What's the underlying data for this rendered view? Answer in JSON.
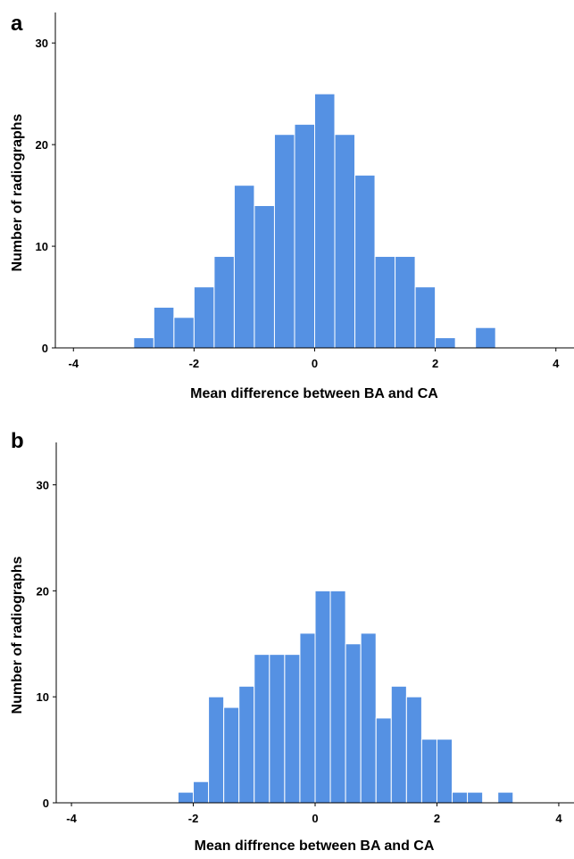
{
  "chart_data": [
    {
      "type": "bar",
      "panel_label": "a",
      "title": "",
      "xlabel": "Mean difference between BA and CA",
      "ylabel": "Number of radiographs",
      "xlim": [
        -4.3,
        4.3
      ],
      "ylim": [
        0,
        33
      ],
      "xticks": [
        -4,
        -2,
        0,
        2,
        4
      ],
      "yticks": [
        0,
        10,
        20,
        30
      ],
      "bin_width": 0.3333,
      "bin_starts": [
        -3.0,
        -2.6667,
        -2.3333,
        -2.0,
        -1.6667,
        -1.3333,
        -1.0,
        -0.6667,
        -0.3333,
        0.0,
        0.3333,
        0.6667,
        1.0,
        1.3333,
        1.6667,
        2.0,
        2.3333,
        2.6667
      ],
      "values": [
        1,
        4,
        3,
        6,
        9,
        16,
        14,
        21,
        22,
        25,
        21,
        17,
        9,
        9,
        6,
        1,
        0,
        2
      ],
      "bar_color": "#5591e3",
      "grid": false
    },
    {
      "type": "bar",
      "panel_label": "b",
      "title": "",
      "xlabel": "Mean diffrence between BA and CA",
      "ylabel": "Number of radiographs",
      "xlim": [
        -4.25,
        4.25
      ],
      "ylim": [
        0,
        34
      ],
      "xticks": [
        -4,
        -2,
        0,
        2,
        4
      ],
      "yticks": [
        0,
        10,
        20,
        30
      ],
      "bin_width": 0.25,
      "bin_starts": [
        -2.25,
        -2.0,
        -1.75,
        -1.5,
        -1.25,
        -1.0,
        -0.75,
        -0.5,
        -0.25,
        0.0,
        0.25,
        0.5,
        0.75,
        1.0,
        1.25,
        1.5,
        1.75,
        2.0,
        2.25,
        2.5,
        2.75,
        3.0
      ],
      "values": [
        1,
        2,
        10,
        9,
        11,
        14,
        14,
        14,
        16,
        20,
        20,
        15,
        16,
        8,
        11,
        10,
        6,
        6,
        1,
        1,
        0,
        1
      ],
      "bar_color": "#5591e3",
      "grid": false
    }
  ]
}
